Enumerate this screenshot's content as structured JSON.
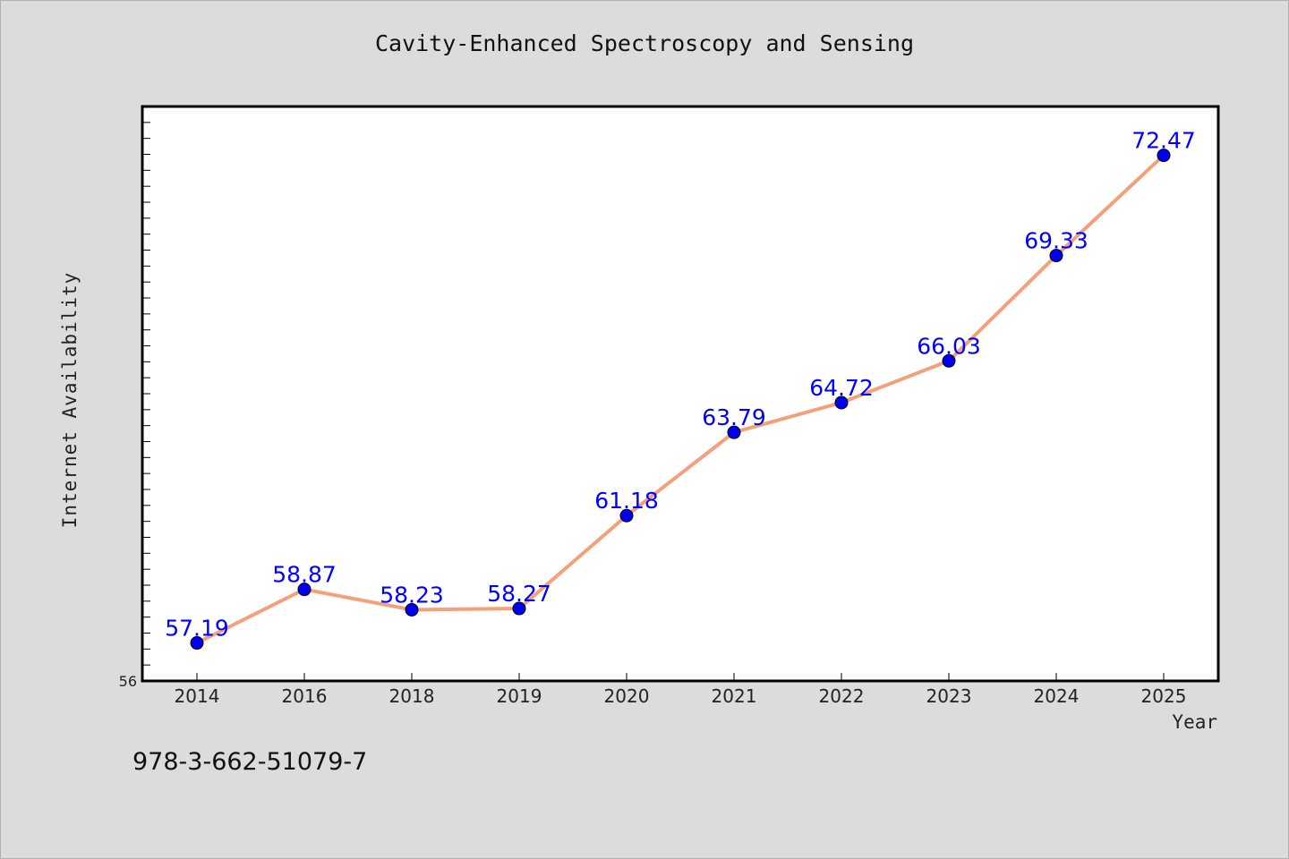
{
  "chart_data": {
    "type": "line",
    "title": "Cavity-Enhanced Spectroscopy and Sensing",
    "xlabel": "Year",
    "ylabel": "Internet Availability",
    "categories": [
      "2014",
      "2016",
      "2018",
      "2019",
      "2020",
      "2021",
      "2022",
      "2023",
      "2024",
      "2025"
    ],
    "series": [
      {
        "values": [
          57.19,
          58.87,
          58.23,
          58.27,
          61.18,
          63.79,
          64.72,
          66.03,
          69.33,
          72.47
        ],
        "data_labels": [
          "57.19",
          "58.87",
          "58.23",
          "58.27",
          "61.18",
          "63.79",
          "64.72",
          "66.03",
          "69.33",
          "72.47"
        ]
      }
    ],
    "ylim": [
      56,
      74
    ],
    "y_tick_labels": [
      "56"
    ],
    "grid": false,
    "colors": {
      "line": "#f4a07a",
      "marker": "#0000ee",
      "label": "#0000ff"
    }
  },
  "footnote": "978-3-662-51079-7"
}
